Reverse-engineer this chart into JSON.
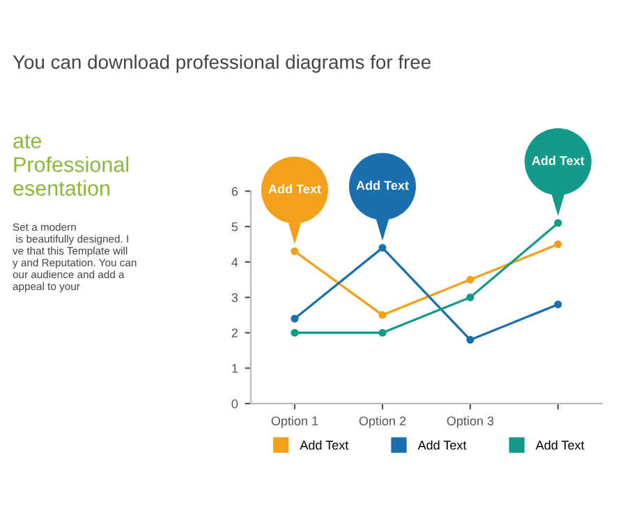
{
  "chart_data": {
    "type": "line",
    "subtitle": "You can download professional diagrams for free",
    "categories": [
      "Option 1",
      "Option 2",
      "Option 3",
      null
    ],
    "series": [
      {
        "name": "Add Text",
        "color": "#f5a01a",
        "values": [
          4.3,
          2.5,
          3.5,
          4.5
        ]
      },
      {
        "name": "Add Text",
        "color": "#1a6fae",
        "values": [
          2.4,
          4.4,
          1.8,
          2.8
        ]
      },
      {
        "name": "Add Text",
        "color": "#139a8a",
        "values": [
          2.0,
          2.0,
          3.0,
          5.1
        ]
      }
    ],
    "ylim": [
      0,
      6
    ],
    "yticks": [
      0,
      1,
      2,
      3,
      4,
      5,
      6
    ],
    "grid": false,
    "legend": "bottom",
    "marker": "circle",
    "line_style": "solid",
    "annotations": [
      "ate\nProfessional\nesentation",
      "Set a modern\n is beautifully designed. I\nve that this Template will\ny and Reputation. You can\nour audience and add a\nappeal to your",
      "Add Text",
      "Add Text",
      "Add Text"
    ]
  }
}
